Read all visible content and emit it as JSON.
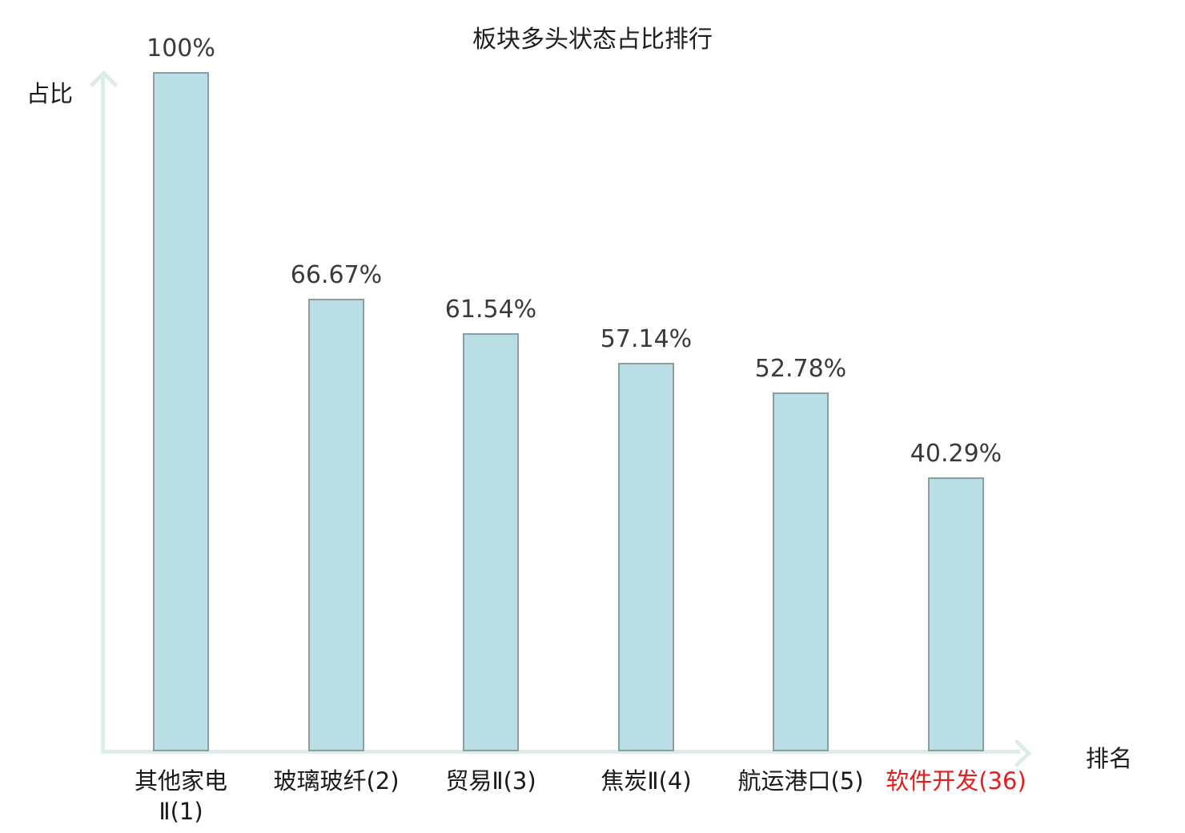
{
  "chart_data": {
    "type": "bar",
    "title": "板块多头状态占比排行",
    "xlabel": "排名",
    "ylabel": "占比",
    "categories": [
      "其他家电\nⅡ(1)",
      "玻璃玻纤(2)",
      "贸易Ⅱ(3)",
      "焦炭Ⅱ(4)",
      "航运港口(5)",
      "软件开发(36)"
    ],
    "values": [
      100,
      66.67,
      61.54,
      57.14,
      52.78,
      40.29
    ],
    "value_labels": [
      "100%",
      "66.67%",
      "61.54%",
      "57.14%",
      "52.78%",
      "40.29%"
    ],
    "ylim": [
      0,
      100
    ],
    "grid": false,
    "legend": "none",
    "highlighted_category_index": 5,
    "colors": {
      "background": "#ffffff",
      "bar_fill": "#b9dee3",
      "bar_border": "#8b9fa3",
      "axis": "#ddece9",
      "title_text": "#1f1f1f",
      "value_text": "#3a3a3a",
      "category_text": "#1a1a1a",
      "highlight_text": "#e02020"
    }
  }
}
